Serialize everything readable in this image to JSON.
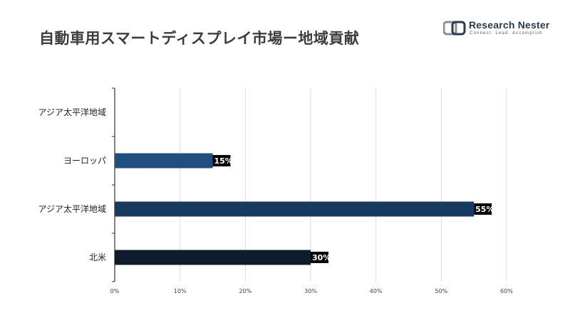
{
  "header": {
    "title": "自動車用スマートディスプレイ市場ー地域貢献"
  },
  "logo": {
    "name": "Research Nester",
    "tagline": "Connect. Lead. Accomplish"
  },
  "chart_data": {
    "type": "bar",
    "orientation": "horizontal",
    "title": "自動車用スマートディスプレイ市場ー地域貢献",
    "categories": [
      "アジア太平洋地域",
      "ヨーロッパ",
      "アジア太平洋地域",
      "北米"
    ],
    "values": [
      null,
      15,
      55,
      30
    ],
    "value_labels": [
      "",
      "15%",
      "55%",
      "30%"
    ],
    "colors": [
      "#1f4e7f",
      "#1f4e7f",
      "#173a5e",
      "#0e1c2d"
    ],
    "x_ticks": [
      0,
      10,
      20,
      30,
      40,
      50,
      60
    ],
    "x_tick_labels": [
      "0%",
      "10%",
      "20%",
      "30%",
      "40%",
      "50%",
      "60%"
    ],
    "xlim": [
      0,
      60
    ],
    "xlabel": "",
    "ylabel": "",
    "grid": true
  }
}
